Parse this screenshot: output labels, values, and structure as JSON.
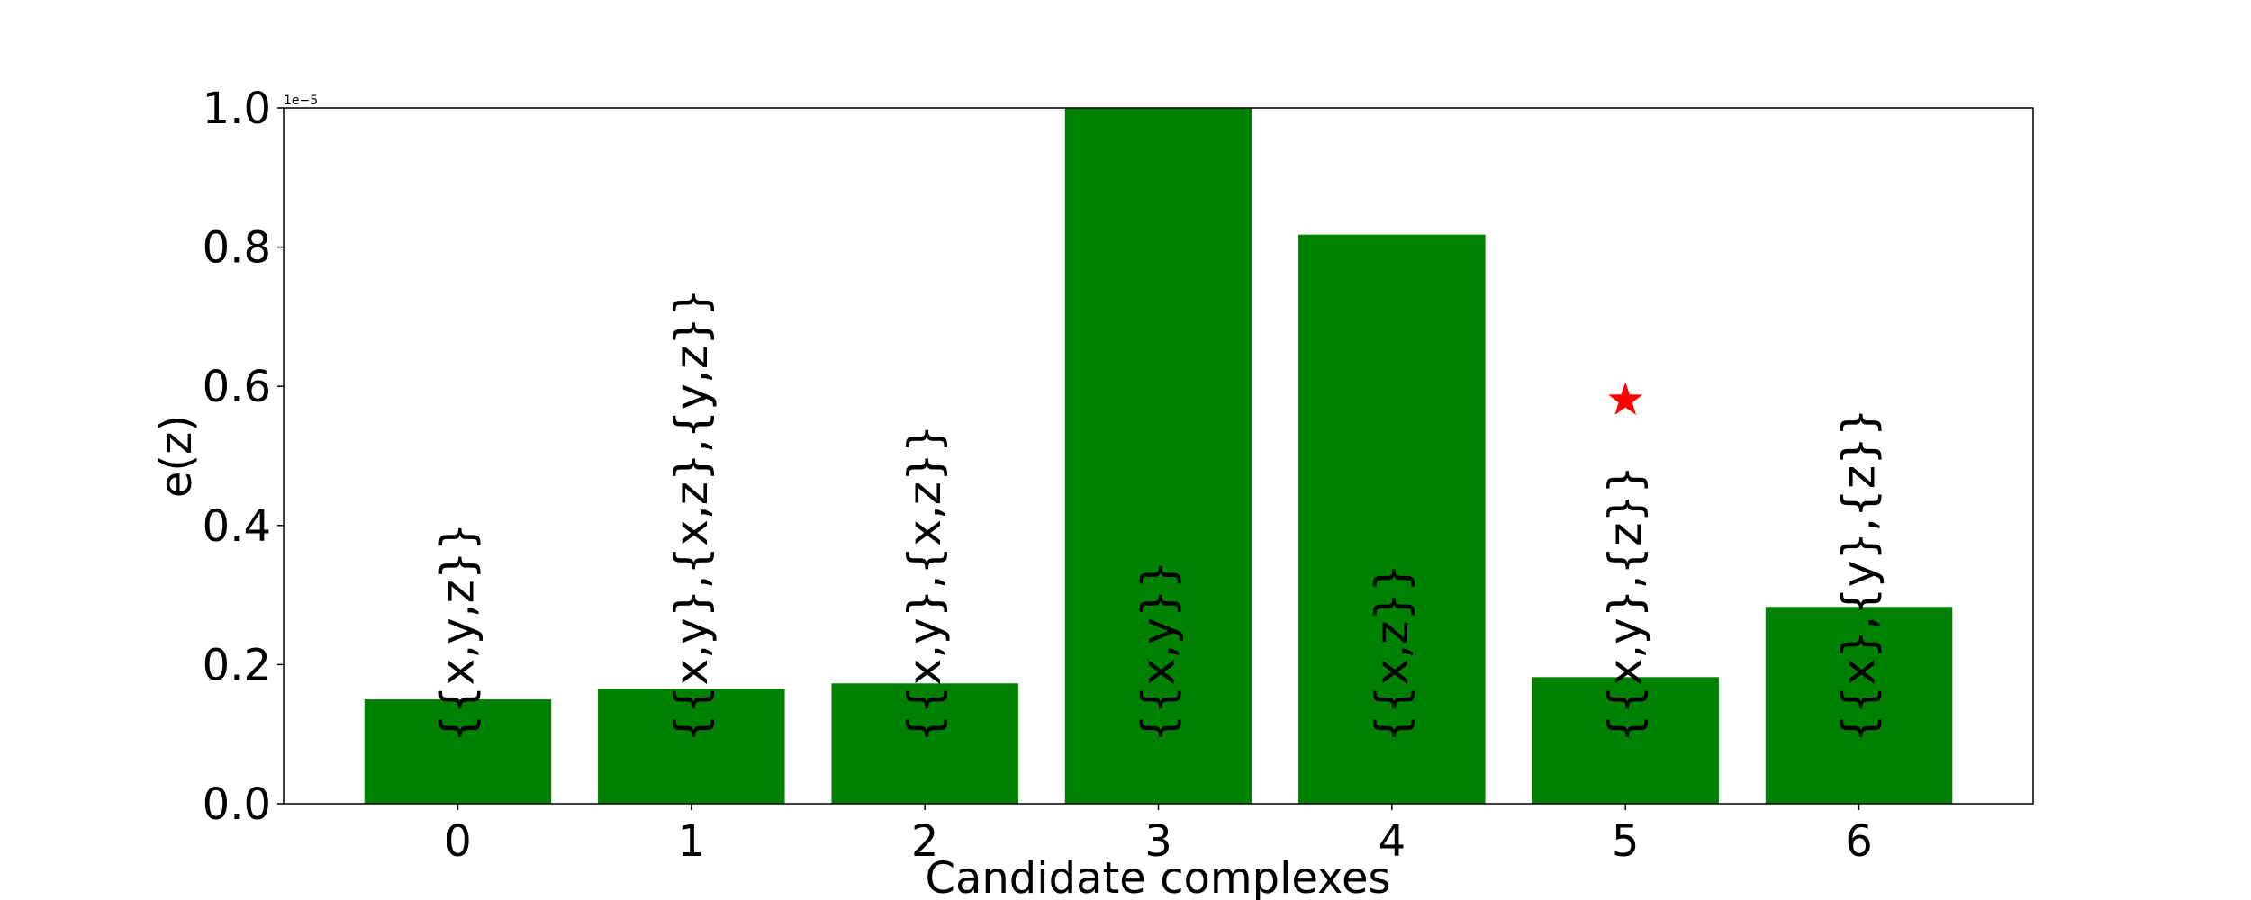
{
  "chart_data": {
    "type": "bar",
    "categories": [
      "0",
      "1",
      "2",
      "3",
      "4",
      "5",
      "6"
    ],
    "values": [
      1.5e-06,
      1.65e-06,
      1.73e-06,
      1e-05,
      8.18e-06,
      1.82e-06,
      2.83e-06
    ],
    "bar_labels": [
      "{{x,y,z}}",
      "{{x,y},{x,z},{y,z}}",
      "{{x,y},{x,z}}",
      "{{x,y}}",
      "{{x,z}}",
      "{{x,y},{z}}",
      "{{x},{y},{z}}"
    ],
    "xlabel": "Candidate complexes",
    "ylabel": "e(z)",
    "ylim": [
      0,
      1e-05
    ],
    "yticks": [
      "0.0",
      "0.2",
      "0.4",
      "0.6",
      "0.8",
      "1.0"
    ],
    "y_offset_text": "1e−5",
    "marker": {
      "symbol": "★",
      "category": "5",
      "value": 5.8e-06,
      "color": "#ff0000"
    },
    "bar_color": "#008000",
    "grid": false,
    "legend": "none"
  }
}
